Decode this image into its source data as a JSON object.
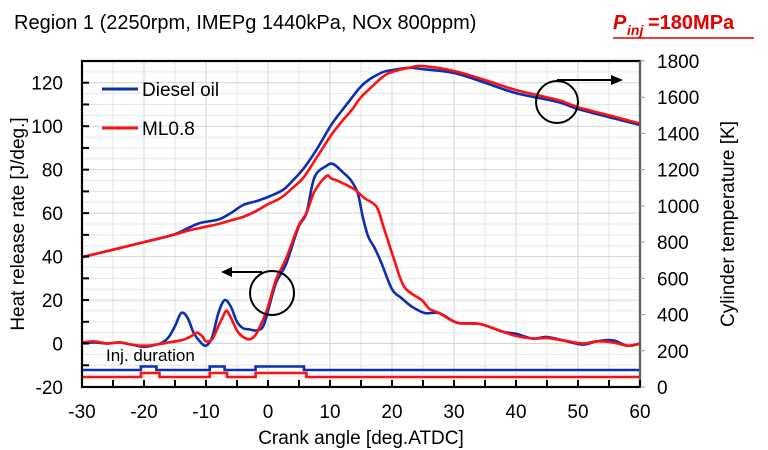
{
  "chart_data": {
    "type": "line",
    "title": "Region 1 (2250rpm, IMEPg 1440kPa, NOx 800ppm)",
    "title_highlight": {
      "symbol": "P",
      "subscript": "inj",
      "value": "=180MPa",
      "color": "#e60000"
    },
    "xlabel": "Crank angle [deg.ATDC]",
    "ylabel_left": "Heat release rate [J/deg.]",
    "ylabel_right": "Cylinder temperature [K]",
    "xlim": [
      -30,
      60
    ],
    "ylim_left": [
      -20,
      130
    ],
    "ylim_right": [
      0,
      1800
    ],
    "xticks": [
      "-30",
      "-20",
      "-10",
      "0",
      "10",
      "20",
      "30",
      "40",
      "50",
      "60"
    ],
    "yticks_left": [
      "-20",
      "0",
      "20",
      "40",
      "60",
      "80",
      "100",
      "120"
    ],
    "yticks_right": [
      "0",
      "200",
      "400",
      "600",
      "800",
      "1000",
      "1200",
      "1400",
      "1600",
      "1800"
    ],
    "grid": true,
    "legend_position": "top-left",
    "annotation": "Inj. duration",
    "series": [
      {
        "name": "Diesel oil",
        "color": "#0a2fb0",
        "hrr": {
          "x": [
            -30,
            -28,
            -26,
            -24,
            -22,
            -20,
            -18,
            -17,
            -16,
            -15,
            -14,
            -13,
            -12,
            -11,
            -10,
            -9,
            -8,
            -7,
            -6,
            -5,
            -4,
            -3,
            -2,
            -1,
            -0.5,
            0,
            1.3,
            2.9,
            4.9,
            6.2,
            7.5,
            9.4,
            10.5,
            12,
            13.4,
            14.5,
            15.3,
            16.2,
            17.2,
            18.3,
            20,
            21.5,
            23.2,
            25.3,
            27.6,
            30.5,
            34.2,
            37.8,
            40,
            42.6,
            45,
            47.5,
            50.8,
            53,
            55.6,
            58,
            60
          ],
          "y": [
            0,
            0.5,
            0,
            0.5,
            -0.5,
            -1.5,
            -0.5,
            0.5,
            3,
            8,
            14,
            12,
            5,
            1,
            -1,
            3,
            14,
            20,
            17,
            10,
            7,
            6.5,
            6,
            7,
            10,
            15,
            28,
            36.5,
            53.5,
            60,
            76.5,
            81.7,
            82.6,
            79,
            75,
            69,
            58,
            49,
            44,
            37,
            25,
            21,
            17,
            14,
            14,
            9.6,
            9,
            5.5,
            4.5,
            2.3,
            3,
            1.5,
            -0.5,
            1,
            1.5,
            -1,
            0
          ]
        },
        "temperature": {
          "x": [
            -30,
            -25,
            -20,
            -15.4,
            -13,
            -11,
            -8,
            -6,
            -4,
            -2,
            0,
            2.4,
            4,
            5.8,
            8,
            10.2,
            12,
            13.5,
            15,
            16.7,
            18.5,
            20,
            22.7,
            25,
            30,
            35,
            40,
            46.7,
            50,
            55,
            60
          ],
          "y": [
            717,
            758,
            800,
            839,
            875,
            905,
            925,
            960,
            1005,
            1025,
            1049,
            1088,
            1140,
            1209,
            1320,
            1447,
            1530,
            1596,
            1660,
            1706,
            1738,
            1750,
            1762,
            1755,
            1734,
            1680,
            1623,
            1574,
            1535,
            1490,
            1447
          ]
        },
        "injection": {
          "on": [
            [
              -20.5,
              -18
            ],
            [
              -9.4,
              -7
            ],
            [
              -2,
              5.8
            ]
          ]
        }
      },
      {
        "name": "ML0.8",
        "color": "#ff1010",
        "hrr": {
          "x": [
            -30,
            -28,
            -26,
            -24,
            -22,
            -20,
            -18,
            -16,
            -14,
            -13,
            -12,
            -11.4,
            -10.5,
            -10,
            -9,
            -8,
            -7,
            -6.6,
            -6,
            -5,
            -4,
            -2.9,
            -2,
            -1,
            0,
            1.3,
            2.9,
            4.9,
            6.2,
            7.5,
            9.4,
            10.2,
            11.5,
            13.9,
            15.5,
            17.5,
            18.6,
            20.3,
            22,
            24.8,
            26,
            27.6,
            30.5,
            34.2,
            37.8,
            40,
            42.6,
            45,
            47.5,
            50.8,
            53,
            55.6,
            58,
            60
          ],
          "y": [
            0.5,
            1,
            0,
            0.5,
            -0.5,
            -1,
            -0.5,
            0.5,
            1.5,
            2.5,
            4,
            5,
            3,
            1,
            2,
            8,
            14,
            15,
            12,
            6,
            3,
            2,
            4,
            9.7,
            17,
            29.5,
            39,
            54,
            60,
            70,
            77,
            76,
            74.5,
            71,
            67,
            63,
            54,
            39,
            26,
            20,
            16,
            14,
            9.6,
            9,
            5.5,
            3.5,
            2.3,
            2.5,
            1.5,
            0,
            1,
            0.5,
            -1,
            0
          ]
        },
        "temperature": {
          "x": [
            -30,
            -25,
            -20,
            -15.4,
            -13,
            -11,
            -8,
            -6,
            -4,
            -2,
            0,
            2,
            4,
            5.8,
            8,
            10.2,
            12,
            13.5,
            15,
            16.7,
            18.5,
            20,
            23.3,
            25,
            30,
            35,
            40,
            46.7,
            50,
            55,
            60
          ],
          "y": [
            717,
            758,
            800,
            839,
            862,
            878,
            900,
            920,
            939,
            970,
            1010,
            1043,
            1100,
            1160,
            1275,
            1391,
            1470,
            1529,
            1600,
            1656,
            1712,
            1739,
            1767,
            1772,
            1745,
            1695,
            1640,
            1585,
            1545,
            1500,
            1455
          ]
        },
        "injection": {
          "on": [
            [
              -20.5,
              -17.5
            ],
            [
              -9.4,
              -6.6
            ],
            [
              -2,
              6.2
            ]
          ]
        }
      }
    ]
  }
}
